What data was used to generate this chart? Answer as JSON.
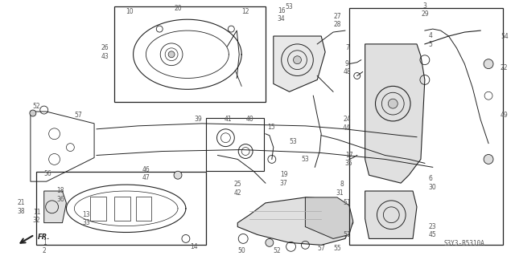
{
  "bg_color": "#ffffff",
  "fig_width": 6.4,
  "fig_height": 3.19,
  "dpi": 100,
  "watermark": "S3Y3-B5310A",
  "gray": "#555555",
  "black": "#222222",
  "light_gray": "#aaaaaa",
  "fs_small": 5.5,
  "fs_tiny": 5.0
}
